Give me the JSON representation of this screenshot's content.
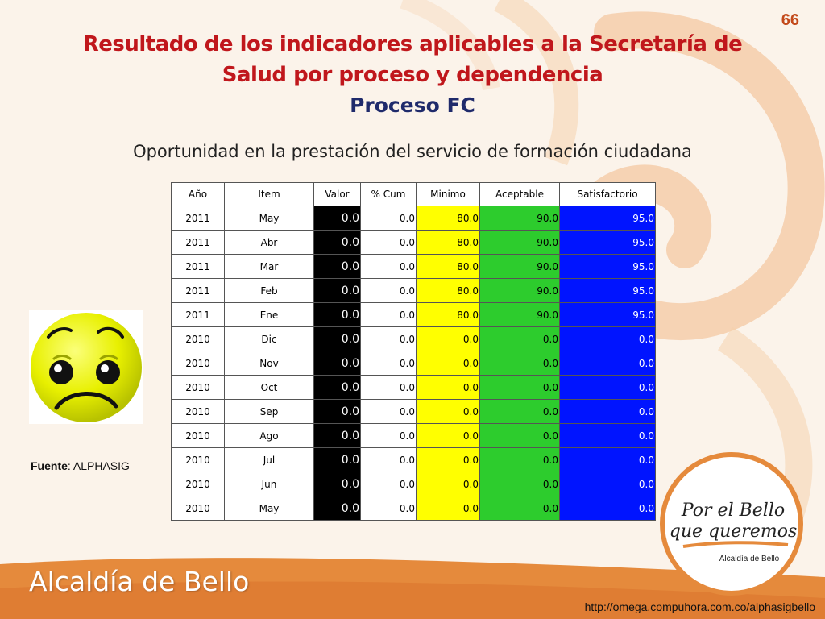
{
  "slide": {
    "page_number": "66",
    "title_line1": "Resultado de los indicadores aplicables a la Secretaría de",
    "title_line2": "Salud por proceso y dependencia",
    "subtitle": "Proceso FC",
    "indicator_name": "Oportunidad en la prestación del servicio de formación ciudadana"
  },
  "table": {
    "headers": [
      "Año",
      "Item",
      "Valor",
      "% Cum",
      "Minimo",
      "Aceptable",
      "Satisfactorio"
    ],
    "rows": [
      [
        "2011",
        "May",
        "0.0",
        "0.0",
        "80.0",
        "90.0",
        "95.0"
      ],
      [
        "2011",
        "Abr",
        "0.0",
        "0.0",
        "80.0",
        "90.0",
        "95.0"
      ],
      [
        "2011",
        "Mar",
        "0.0",
        "0.0",
        "80.0",
        "90.0",
        "95.0"
      ],
      [
        "2011",
        "Feb",
        "0.0",
        "0.0",
        "80.0",
        "90.0",
        "95.0"
      ],
      [
        "2011",
        "Ene",
        "0.0",
        "0.0",
        "80.0",
        "90.0",
        "95.0"
      ],
      [
        "2010",
        "Dic",
        "0.0",
        "0.0",
        "0.0",
        "0.0",
        "0.0"
      ],
      [
        "2010",
        "Nov",
        "0.0",
        "0.0",
        "0.0",
        "0.0",
        "0.0"
      ],
      [
        "2010",
        "Oct",
        "0.0",
        "0.0",
        "0.0",
        "0.0",
        "0.0"
      ],
      [
        "2010",
        "Sep",
        "0.0",
        "0.0",
        "0.0",
        "0.0",
        "0.0"
      ],
      [
        "2010",
        "Ago",
        "0.0",
        "0.0",
        "0.0",
        "0.0",
        "0.0"
      ],
      [
        "2010",
        "Jul",
        "0.0",
        "0.0",
        "0.0",
        "0.0",
        "0.0"
      ],
      [
        "2010",
        "Jun",
        "0.0",
        "0.0",
        "0.0",
        "0.0",
        "0.0"
      ],
      [
        "2010",
        "May",
        "0.0",
        "0.0",
        "0.0",
        "0.0",
        "0.0"
      ]
    ]
  },
  "source": {
    "label": "Fuente",
    "value": ": ALPHASIG"
  },
  "logo": {
    "line1": "Por el Bello",
    "line2": "que queremos",
    "caption": "Alcaldía de Bello"
  },
  "footer": {
    "brand": "Alcaldía de Bello",
    "url": "http://omega.compuhora.com.co/alphasigbello"
  },
  "colors": {
    "title": "#c0171c",
    "subtitle": "#1f2a6b",
    "valor_bg": "#000000",
    "minimo_bg": "#ffff00",
    "aceptable_bg": "#2dcc2d",
    "satisfactorio_bg": "#0014ff",
    "band": "#e58a3c"
  },
  "icons": {
    "status_face": "sad-face-icon"
  }
}
